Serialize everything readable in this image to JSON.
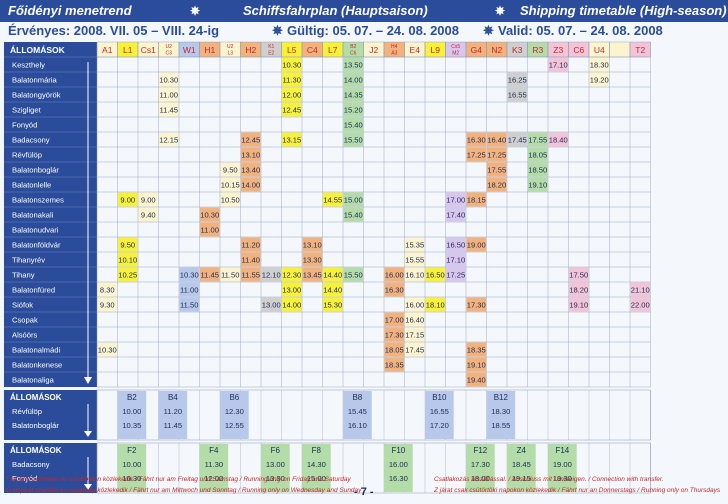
{
  "header": {
    "left_title": "Főidényi menetrend",
    "center_title": "Schiffsfahrplan (Hauptsaison)",
    "right_title": "Shipping timetable (High-season)",
    "validity_hu": "Érvényes: 2008. VII. 05 – VIII. 24-ig",
    "validity_de": "Gültig: 05. 07. – 24. 08. 2008",
    "validity_en": "Valid: 05. 07. – 24. 08. 2008"
  },
  "colors": {
    "header_bg": "#2a4c9a",
    "yellow": "#f7f13a",
    "green": "#b3dca8",
    "orange": "#f2b27e",
    "blue": "#b7c8ea",
    "pink": "#f2c4d8",
    "lilac": "#d9c6ef",
    "grey": "#cfcfcf",
    "cream": "#fbf4cf"
  },
  "stations_header": "ÁLLOMÁSOK",
  "stations": [
    "Keszthely",
    "Balatonmária",
    "Balatongyörök",
    "Szigliget",
    "Fonyód",
    "Badacsony",
    "Révfülöp",
    "Balatonboglár",
    "Balatonlelle",
    "Balatonszemes",
    "Balatonakali",
    "Balatonudvari",
    "Balatonföldvár",
    "Tihanyrév",
    "Tihany",
    "Balatonfüred",
    "Siófok",
    "Csopak",
    "Alsóörs",
    "Balatonalmádi",
    "Balatonkenese",
    "Balatonaliga"
  ],
  "columns": [
    {
      "code": "A1",
      "color": "#fbf4cf"
    },
    {
      "code": "L1",
      "color": "#f7f13a"
    },
    {
      "code": "Cs1",
      "color": "#fbf4cf"
    },
    {
      "code": "U2\nC3",
      "color": "#fbf4cf"
    },
    {
      "code": "W1",
      "color": "#b7c8ea"
    },
    {
      "code": "H1",
      "color": "#f2b27e"
    },
    {
      "code": "U2\nL3",
      "color": "#fbf4cf"
    },
    {
      "code": "H2",
      "color": "#f2b27e"
    },
    {
      "code": "K1\nE2",
      "color": "#cfcfcf"
    },
    {
      "code": "L5",
      "color": "#f7f13a"
    },
    {
      "code": "C4",
      "color": "#f2b27e"
    },
    {
      "code": "L7",
      "color": "#f7f13a"
    },
    {
      "code": "B2\nC6",
      "color": "#b3dca8"
    },
    {
      "code": "J2",
      "color": "#fbf4cf"
    },
    {
      "code": "H4\nA3",
      "color": "#f2b27e"
    },
    {
      "code": "E4",
      "color": "#fbf4cf"
    },
    {
      "code": "L9",
      "color": "#f7f13a"
    },
    {
      "code": "Cs5\nM2",
      "color": "#d9c6ef"
    },
    {
      "code": "G4",
      "color": "#f2b27e"
    },
    {
      "code": "N2",
      "color": "#f2b27e"
    },
    {
      "code": "K3",
      "color": "#cfcfcf"
    },
    {
      "code": "R3",
      "color": "#b3dca8"
    },
    {
      "code": "Z3",
      "color": "#f2c4d8"
    },
    {
      "code": "C6",
      "color": "#f2c4d8"
    },
    {
      "code": "U4",
      "color": "#fbf4cf"
    },
    {
      "code": "",
      "color": "#fbf4cf"
    },
    {
      "code": "T2",
      "color": "#f2c4d8"
    }
  ],
  "cells": [
    {
      "c": 9,
      "r": 0,
      "t": "10.30"
    },
    {
      "c": 12,
      "r": 0,
      "t": "13.50"
    },
    {
      "c": 22,
      "r": 0,
      "t": "17.10"
    },
    {
      "c": 24,
      "r": 0,
      "t": "18.30"
    },
    {
      "c": 3,
      "r": 1,
      "t": "10.30"
    },
    {
      "c": 9,
      "r": 1,
      "t": "11.30"
    },
    {
      "c": 12,
      "r": 1,
      "t": "14.00"
    },
    {
      "c": 20,
      "r": 1,
      "t": "16.25"
    },
    {
      "c": 24,
      "r": 1,
      "t": "19.20"
    },
    {
      "c": 3,
      "r": 2,
      "t": "11.00"
    },
    {
      "c": 9,
      "r": 2,
      "t": "12.00"
    },
    {
      "c": 12,
      "r": 2,
      "t": "14.35"
    },
    {
      "c": 20,
      "r": 2,
      "t": "16.55"
    },
    {
      "c": 3,
      "r": 3,
      "t": "11.45"
    },
    {
      "c": 9,
      "r": 3,
      "t": "12.45"
    },
    {
      "c": 12,
      "r": 3,
      "t": "15.20"
    },
    {
      "c": 12,
      "r": 4,
      "t": "15.40"
    },
    {
      "c": 3,
      "r": 5,
      "t": "12.15"
    },
    {
      "c": 7,
      "r": 5,
      "t": "12.45"
    },
    {
      "c": 9,
      "r": 5,
      "t": "13.15"
    },
    {
      "c": 12,
      "r": 5,
      "t": "15.50"
    },
    {
      "c": 18,
      "r": 5,
      "t": "16.30"
    },
    {
      "c": 19,
      "r": 5,
      "t": "16.40"
    },
    {
      "c": 20,
      "r": 5,
      "t": "17.45"
    },
    {
      "c": 21,
      "r": 5,
      "t": "17.55"
    },
    {
      "c": 22,
      "r": 5,
      "t": "18.40"
    },
    {
      "c": 7,
      "r": 6,
      "t": "13.10"
    },
    {
      "c": 18,
      "r": 6,
      "t": "17.25"
    },
    {
      "c": 19,
      "r": 6,
      "t": "17.25"
    },
    {
      "c": 21,
      "r": 6,
      "t": "18.05"
    },
    {
      "c": 6,
      "r": 7,
      "t": "9.50"
    },
    {
      "c": 7,
      "r": 7,
      "t": "13.40"
    },
    {
      "c": 19,
      "r": 7,
      "t": "17.55"
    },
    {
      "c": 21,
      "r": 7,
      "t": "18.50"
    },
    {
      "c": 6,
      "r": 8,
      "t": "10.15"
    },
    {
      "c": 7,
      "r": 8,
      "t": "14.00"
    },
    {
      "c": 19,
      "r": 8,
      "t": "18.20"
    },
    {
      "c": 21,
      "r": 8,
      "t": "19.10"
    },
    {
      "c": 1,
      "r": 9,
      "t": "9.00"
    },
    {
      "c": 2,
      "r": 9,
      "t": "9.00"
    },
    {
      "c": 6,
      "r": 9,
      "t": "10.50"
    },
    {
      "c": 11,
      "r": 9,
      "t": "14.55"
    },
    {
      "c": 12,
      "r": 9,
      "t": "15.00"
    },
    {
      "c": 17,
      "r": 9,
      "t": "17.00"
    },
    {
      "c": 18,
      "r": 9,
      "t": "18.15"
    },
    {
      "c": 2,
      "r": 10,
      "t": "9.40"
    },
    {
      "c": 5,
      "r": 10,
      "t": "10.30"
    },
    {
      "c": 12,
      "r": 10,
      "t": "15.40"
    },
    {
      "c": 17,
      "r": 10,
      "t": "17.40"
    },
    {
      "c": 5,
      "r": 11,
      "t": "11.00"
    },
    {
      "c": 1,
      "r": 12,
      "t": "9.50"
    },
    {
      "c": 7,
      "r": 12,
      "t": "11.20"
    },
    {
      "c": 10,
      "r": 12,
      "t": "13.10"
    },
    {
      "c": 15,
      "r": 12,
      "t": "15.35"
    },
    {
      "c": 17,
      "r": 12,
      "t": "16.50"
    },
    {
      "c": 18,
      "r": 12,
      "t": "19.00"
    },
    {
      "c": 1,
      "r": 13,
      "t": "10.10"
    },
    {
      "c": 7,
      "r": 13,
      "t": "11.40"
    },
    {
      "c": 10,
      "r": 13,
      "t": "13.30"
    },
    {
      "c": 15,
      "r": 13,
      "t": "15.55"
    },
    {
      "c": 17,
      "r": 13,
      "t": "17.10"
    },
    {
      "c": 1,
      "r": 14,
      "t": "10.25"
    },
    {
      "c": 4,
      "r": 14,
      "t": "10.30"
    },
    {
      "c": 5,
      "r": 14,
      "t": "11.45"
    },
    {
      "c": 6,
      "r": 14,
      "t": "11.50"
    },
    {
      "c": 7,
      "r": 14,
      "t": "11.55"
    },
    {
      "c": 8,
      "r": 14,
      "t": "12.10"
    },
    {
      "c": 9,
      "r": 14,
      "t": "12.30"
    },
    {
      "c": 10,
      "r": 14,
      "t": "13.45"
    },
    {
      "c": 11,
      "r": 14,
      "t": "14.40"
    },
    {
      "c": 12,
      "r": 14,
      "t": "15.50"
    },
    {
      "c": 14,
      "r": 14,
      "t": "16.00"
    },
    {
      "c": 15,
      "r": 14,
      "t": "16.10"
    },
    {
      "c": 16,
      "r": 14,
      "t": "16.50"
    },
    {
      "c": 17,
      "r": 14,
      "t": "17.25"
    },
    {
      "c": 23,
      "r": 14,
      "t": "17.50"
    },
    {
      "c": 0,
      "r": 15,
      "t": "8.30"
    },
    {
      "c": 4,
      "r": 15,
      "t": "11.00"
    },
    {
      "c": 9,
      "r": 15,
      "t": "13.00"
    },
    {
      "c": 11,
      "r": 15,
      "t": "14.40"
    },
    {
      "c": 14,
      "r": 15,
      "t": "16.30"
    },
    {
      "c": 23,
      "r": 15,
      "t": "18.20"
    },
    {
      "c": 26,
      "r": 15,
      "t": "21.10"
    },
    {
      "c": 0,
      "r": 16,
      "t": "9.30"
    },
    {
      "c": 4,
      "r": 16,
      "t": "11.50"
    },
    {
      "c": 8,
      "r": 16,
      "t": "13.00"
    },
    {
      "c": 9,
      "r": 16,
      "t": "14.00"
    },
    {
      "c": 11,
      "r": 16,
      "t": "15.30"
    },
    {
      "c": 15,
      "r": 16,
      "t": "16.00"
    },
    {
      "c": 16,
      "r": 16,
      "t": "18.10"
    },
    {
      "c": 18,
      "r": 16,
      "t": "17.30"
    },
    {
      "c": 23,
      "r": 16,
      "t": "19.10"
    },
    {
      "c": 26,
      "r": 16,
      "t": "22.00"
    },
    {
      "c": 14,
      "r": 17,
      "t": "17.00"
    },
    {
      "c": 15,
      "r": 17,
      "t": "16.40"
    },
    {
      "c": 14,
      "r": 18,
      "t": "17.30"
    },
    {
      "c": 15,
      "r": 18,
      "t": "17.15"
    },
    {
      "c": 0,
      "r": 19,
      "t": "10.30"
    },
    {
      "c": 14,
      "r": 19,
      "t": "18.05"
    },
    {
      "c": 15,
      "r": 19,
      "t": "17.45"
    },
    {
      "c": 18,
      "r": 19,
      "t": "18.35"
    },
    {
      "c": 14,
      "r": 20,
      "t": "18.35"
    },
    {
      "c": 18,
      "r": 20,
      "t": "19.10"
    },
    {
      "c": 18,
      "r": 21,
      "t": "19.40"
    }
  ],
  "ferry1": {
    "header": "ÁLLOMÁSOK",
    "stations": [
      "Révfülöp",
      "Balatonboglár"
    ],
    "columns": [
      {
        "code": "B2",
        "c": 1
      },
      {
        "code": "B4",
        "c": 3
      },
      {
        "code": "B6",
        "c": 6
      },
      {
        "code": "B8",
        "c": 12
      },
      {
        "code": "B10",
        "c": 16
      },
      {
        "code": "B12",
        "c": 19
      }
    ],
    "times": [
      [
        "10.00",
        "11.20",
        "12.30",
        "15.45",
        "16.55",
        "18.30"
      ],
      [
        "10.35",
        "11.45",
        "12.55",
        "16.10",
        "17.20",
        "18.55"
      ]
    ]
  },
  "ferry2": {
    "header": "ÁLLOMÁSOK",
    "stations": [
      "Badacsony",
      "Fonyód"
    ],
    "columns": [
      {
        "code": "F2",
        "c": 1
      },
      {
        "code": "F4",
        "c": 5
      },
      {
        "code": "F6",
        "c": 8
      },
      {
        "code": "F8",
        "c": 10
      },
      {
        "code": "F10",
        "c": 14
      },
      {
        "code": "F12",
        "c": 18
      },
      {
        "code": "Z4",
        "c": 20
      },
      {
        "code": "F14",
        "c": 22
      }
    ],
    "times": [
      [
        "10.00",
        "11.30",
        "13.00",
        "14.30",
        "16.00",
        "17.30",
        "18.45",
        "19.00"
      ],
      [
        "10.30",
        "12.00",
        "13.30",
        "15.00",
        "16.30",
        "18.00",
        "19.15",
        "19.30"
      ]
    ]
  },
  "footer": {
    "note1": "* M járat pénteken és szombaton közlekedik / Fährt nur am Freitag und Samstag / Running only on Friday and Saturday",
    "note2": "O W járat szerdán és vasárnap közlekedik / Fährt nur am Mittwoch und Sonntag / Running only on Wednesday and Sunday",
    "page": "- 7 -",
    "note3": "Csatlakozás átszállással. / Anschluss mit Umsteigen. / Connection with transfer.",
    "note4": "Z járat csak csütörtöki napokon közlekedik / Fährt nur an Donnerstags / Running only on Thursdays"
  }
}
